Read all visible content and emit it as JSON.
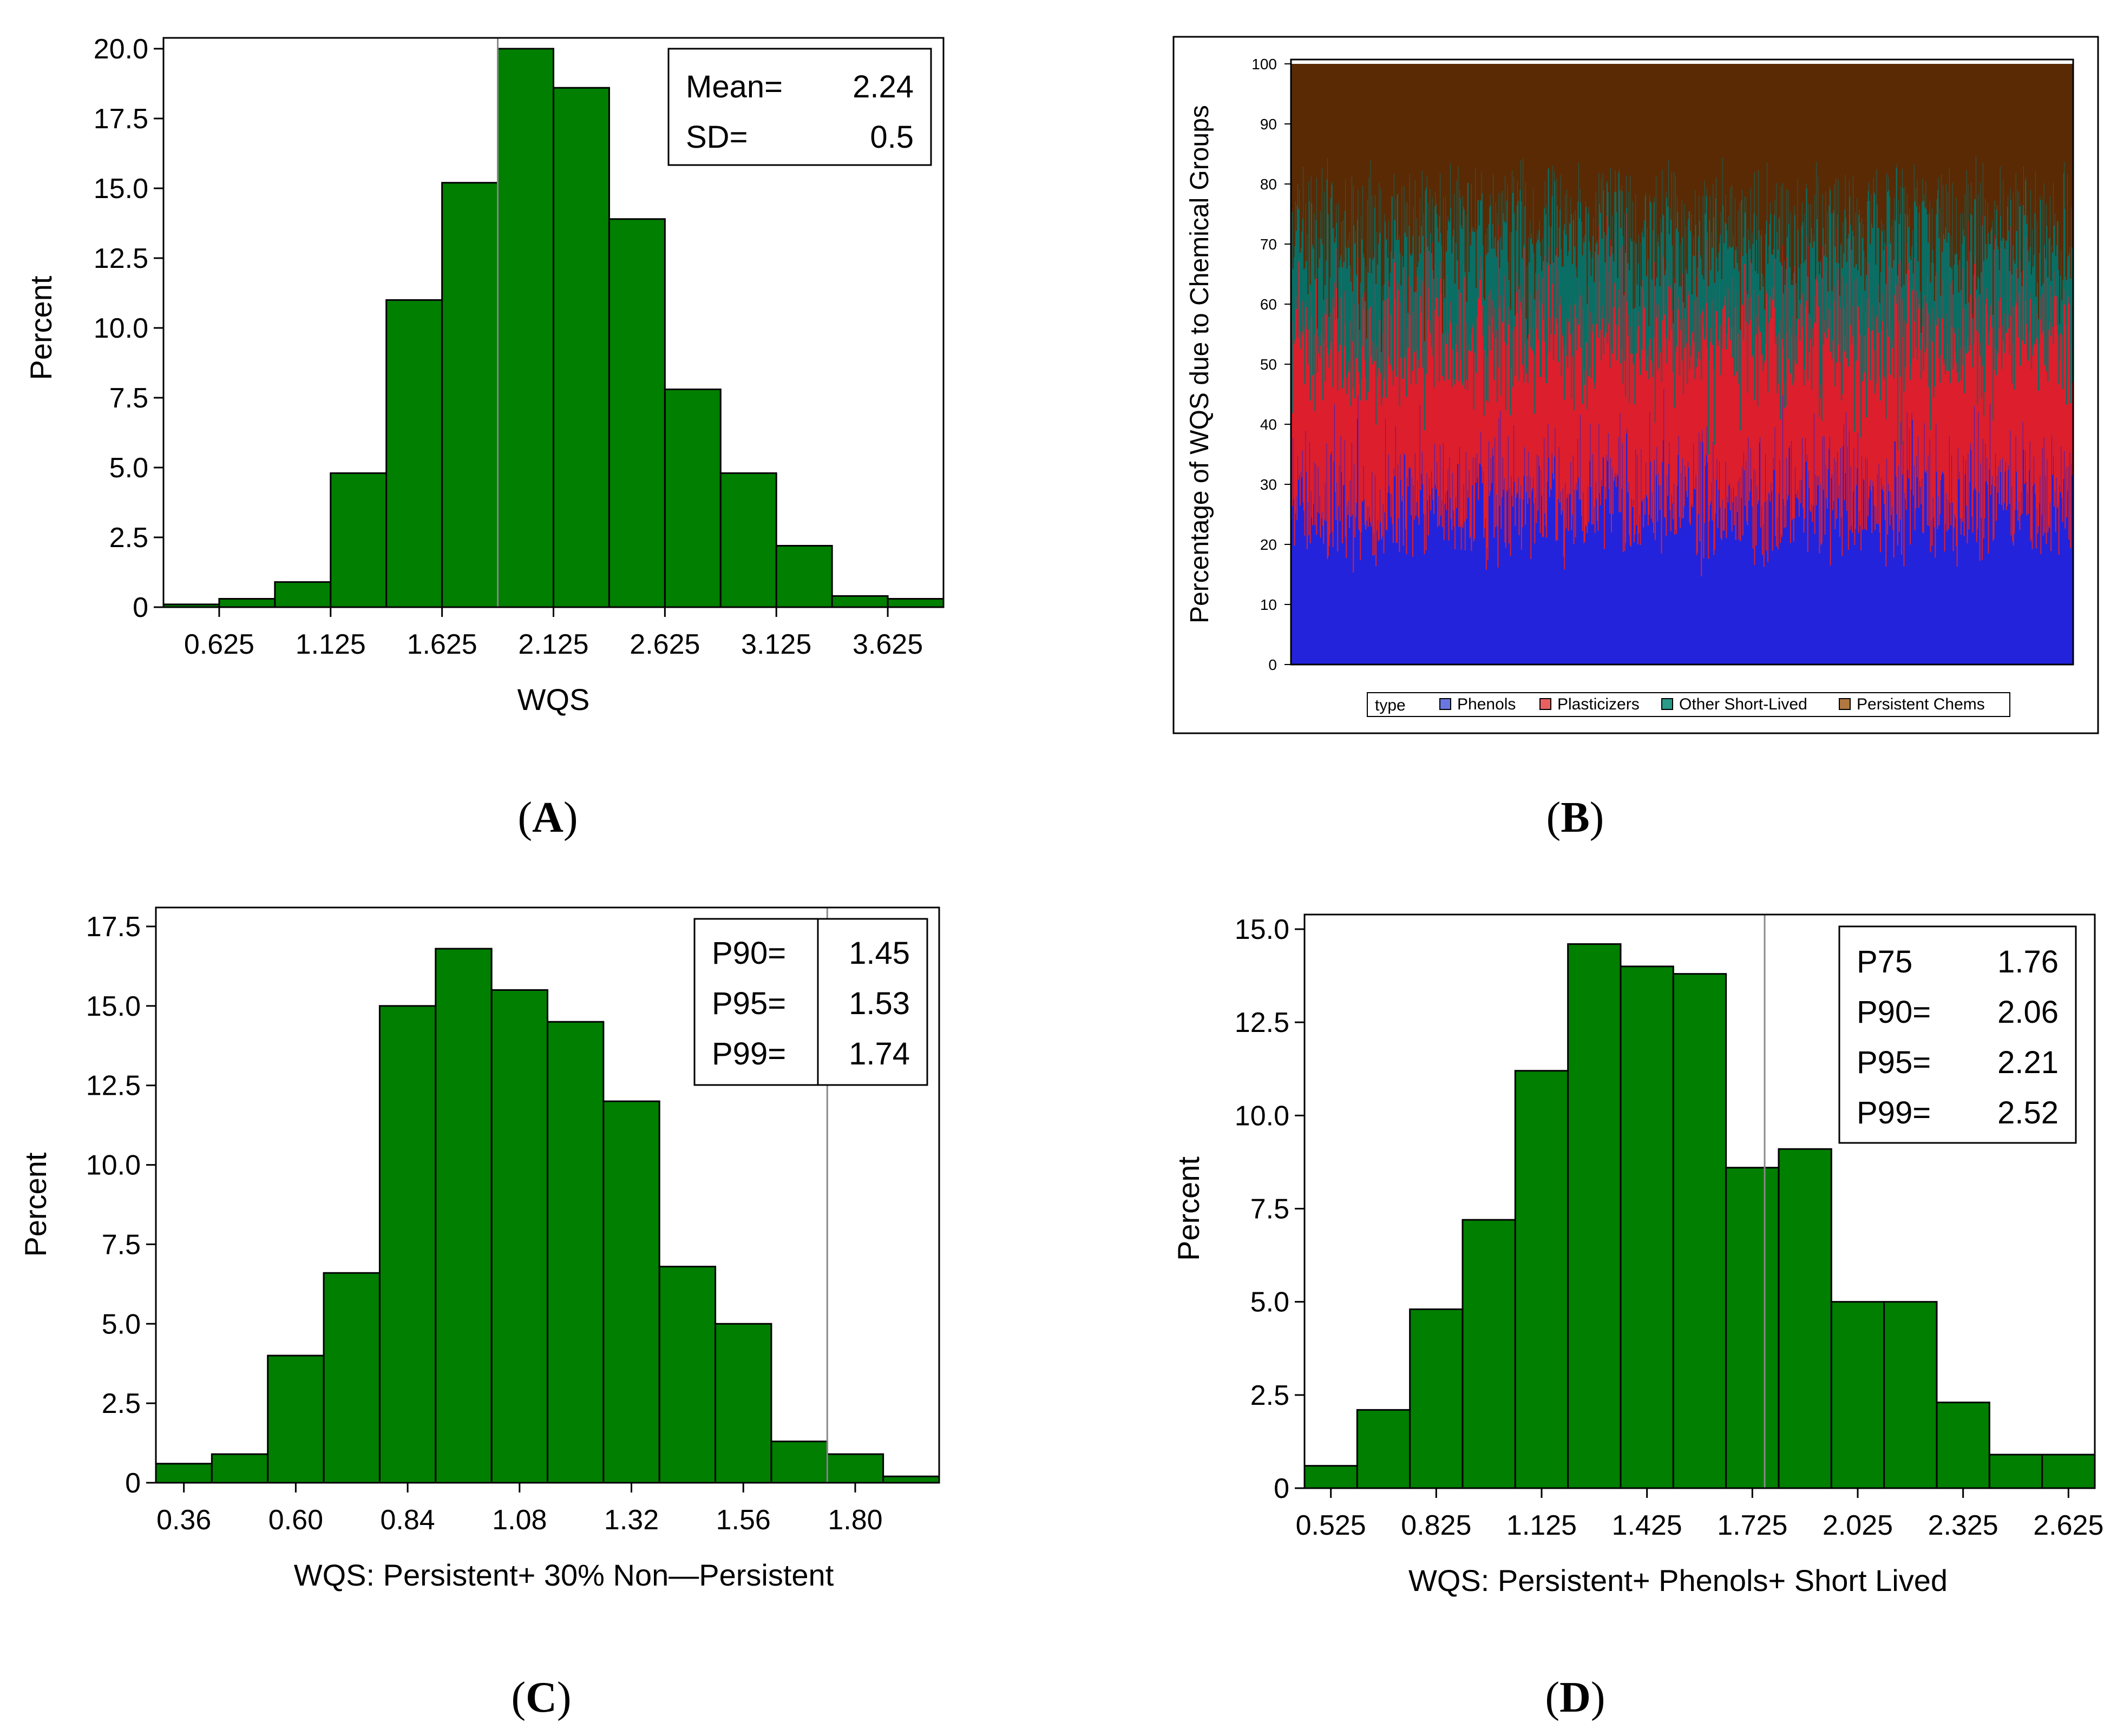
{
  "colors": {
    "bar_fill": "#007F00",
    "bar_stroke": "#000000",
    "ref_line": "#8a8a8a",
    "phenols": "#2323DC",
    "plasticizers": "#DC1E2D",
    "other_short_lived": "#0A6E64",
    "persistent_chems": "#5A2A05",
    "legend_phenols": "#6878E0",
    "legend_plasticizers": "#E86060",
    "legend_other_short_lived": "#2A9A8A",
    "legend_persistent_chems": "#B07840"
  },
  "chart_data": [
    {
      "id": "A",
      "caption": "A",
      "type": "bar",
      "title": "",
      "xlabel": "WQS",
      "ylabel": "Percent",
      "bin_start": 0.375,
      "bin_width": 0.25,
      "values": [
        0.1,
        0.3,
        0.9,
        4.8,
        11.0,
        15.2,
        20.0,
        18.6,
        13.9,
        7.8,
        4.8,
        2.2,
        0.4,
        0.3
      ],
      "xlim": [
        0.375,
        3.875
      ],
      "x_ticks": [
        "0.625",
        "1.125",
        "1.625",
        "2.125",
        "2.625",
        "3.125",
        "3.625"
      ],
      "ylim": [
        0,
        20
      ],
      "y_ticks": [
        "0",
        "2.5",
        "5.0",
        "7.5",
        "10.0",
        "12.5",
        "15.0",
        "17.5",
        "20.0"
      ],
      "ref_line": 1.875,
      "stats": [
        {
          "label": "Mean=",
          "value": "2.24"
        },
        {
          "label": "SD=",
          "value": "0.5"
        }
      ]
    },
    {
      "id": "B",
      "caption": "B",
      "type": "bar",
      "stacked": true,
      "title": "",
      "xlabel": "",
      "ylabel": "Percentage of WQS due to Chemical Groups",
      "n_bars": 1000,
      "ylim": [
        0,
        100
      ],
      "y_ticks": [
        "0",
        "10",
        "20",
        "30",
        "40",
        "50",
        "60",
        "70",
        "80",
        "90",
        "100"
      ],
      "series": [
        {
          "name": "Phenols",
          "color_key": "phenols",
          "typical_range": [
            15,
            35
          ]
        },
        {
          "name": "Plasticizers",
          "color_key": "plasticizers",
          "typical_range": [
            15,
            35
          ]
        },
        {
          "name": "Other Short-Lived",
          "color_key": "other_short_lived",
          "typical_range": [
            5,
            25
          ]
        },
        {
          "name": "Persistent Chems",
          "color_key": "persistent_chems",
          "typical_range": [
            15,
            35
          ]
        }
      ],
      "legend_title": "type",
      "legend_position": "bottom"
    },
    {
      "id": "C",
      "caption": "C",
      "type": "bar",
      "title": "",
      "xlabel": "WQS:  Persistent+ 30%  Non—Persistent",
      "ylabel": "Percent",
      "bin_start": 0.3,
      "bin_width": 0.12,
      "values": [
        0.6,
        0.9,
        4.0,
        6.6,
        15.0,
        16.8,
        15.5,
        14.5,
        12.0,
        6.8,
        5.0,
        1.3,
        0.9,
        0.2
      ],
      "xlim": [
        0.3,
        1.98
      ],
      "x_ticks": [
        "0.36",
        "0.60",
        "0.84",
        "1.08",
        "1.32",
        "1.56",
        "1.80"
      ],
      "ylim": [
        0,
        17.5
      ],
      "y_ticks": [
        "0",
        "2.5",
        "5.0",
        "7.5",
        "10.0",
        "12.5",
        "15.0",
        "17.5"
      ],
      "ref_line": 1.74,
      "stats": [
        {
          "label": "P90=",
          "value": "1.45"
        },
        {
          "label": "P95=",
          "value": "1.53"
        },
        {
          "label": "P99=",
          "value": "1.74"
        }
      ]
    },
    {
      "id": "D",
      "caption": "D",
      "type": "bar",
      "title": "",
      "xlabel": "WQS:  Persistent+ Phenols+ Short  Lived",
      "ylabel": "Percent",
      "bin_start": 0.45,
      "bin_width": 0.15,
      "values": [
        0.6,
        2.1,
        4.8,
        7.2,
        11.2,
        14.6,
        14.0,
        13.8,
        8.6,
        9.1,
        5.0,
        5.0,
        2.3,
        0.9,
        0.9
      ],
      "xlim": [
        0.45,
        2.7
      ],
      "x_ticks": [
        "0.525",
        "0.825",
        "1.125",
        "1.425",
        "1.725",
        "2.025",
        "2.325",
        "2.625"
      ],
      "ylim": [
        0,
        15
      ],
      "y_ticks": [
        "0",
        "2.5",
        "5.0",
        "7.5",
        "10.0",
        "12.5",
        "15.0"
      ],
      "ref_line": 1.76,
      "stats": [
        {
          "label": "P75",
          "value": "1.76"
        },
        {
          "label": "P90=",
          "value": "2.06"
        },
        {
          "label": "P95=",
          "value": "2.21"
        },
        {
          "label": "P99=",
          "value": "2.52"
        }
      ]
    }
  ]
}
